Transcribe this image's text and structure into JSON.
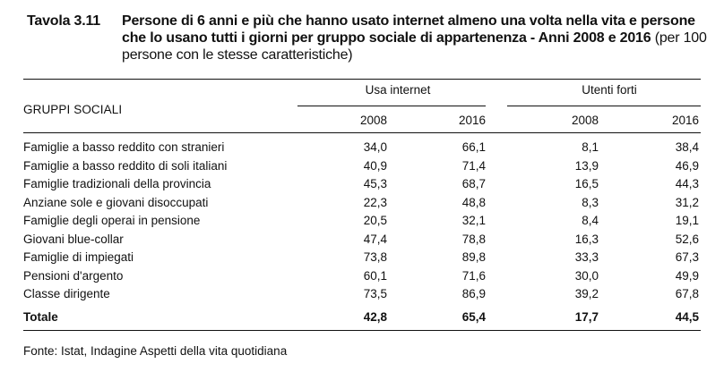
{
  "caption": {
    "number": "Tavola 3.11",
    "title_bold": "Persone di 6 anni e più che hanno usato internet almeno una volta nella vita e persone che lo usano tutti i giorni per gruppo sociale di appartenenza - Anni 2008 e 2016",
    "title_plain": " (per 100 persone con le stesse caratteristiche)"
  },
  "table": {
    "row_header": "GRUPPI SOCIALI",
    "groups": [
      "Usa internet",
      "Utenti forti"
    ],
    "years": [
      "2008",
      "2016",
      "2008",
      "2016"
    ],
    "rows": [
      {
        "label": "Famiglie a basso reddito con stranieri",
        "values": [
          "34,0",
          "66,1",
          "8,1",
          "38,4"
        ]
      },
      {
        "label": "Famiglie a basso reddito di soli italiani",
        "values": [
          "40,9",
          "71,4",
          "13,9",
          "46,9"
        ]
      },
      {
        "label": "Famiglie tradizionali della provincia",
        "values": [
          "45,3",
          "68,7",
          "16,5",
          "44,3"
        ]
      },
      {
        "label": "Anziane sole e giovani disoccupati",
        "values": [
          "22,3",
          "48,8",
          "8,3",
          "31,2"
        ]
      },
      {
        "label": "Famiglie degli operai in pensione",
        "values": [
          "20,5",
          "32,1",
          "8,4",
          "19,1"
        ]
      },
      {
        "label": "Giovani blue-collar",
        "values": [
          "47,4",
          "78,8",
          "16,3",
          "52,6"
        ]
      },
      {
        "label": "Famiglie di impiegati",
        "values": [
          "73,8",
          "89,8",
          "33,3",
          "67,3"
        ]
      },
      {
        "label": "Pensioni d'argento",
        "values": [
          "60,1",
          "71,6",
          "30,0",
          "49,9"
        ]
      },
      {
        "label": "Classe dirigente",
        "values": [
          "73,5",
          "86,9",
          "39,2",
          "67,8"
        ]
      }
    ],
    "total": {
      "label": "Totale",
      "values": [
        "42,8",
        "65,4",
        "17,7",
        "44,5"
      ]
    }
  },
  "source": "Fonte: Istat, Indagine Aspetti della vita quotidiana"
}
